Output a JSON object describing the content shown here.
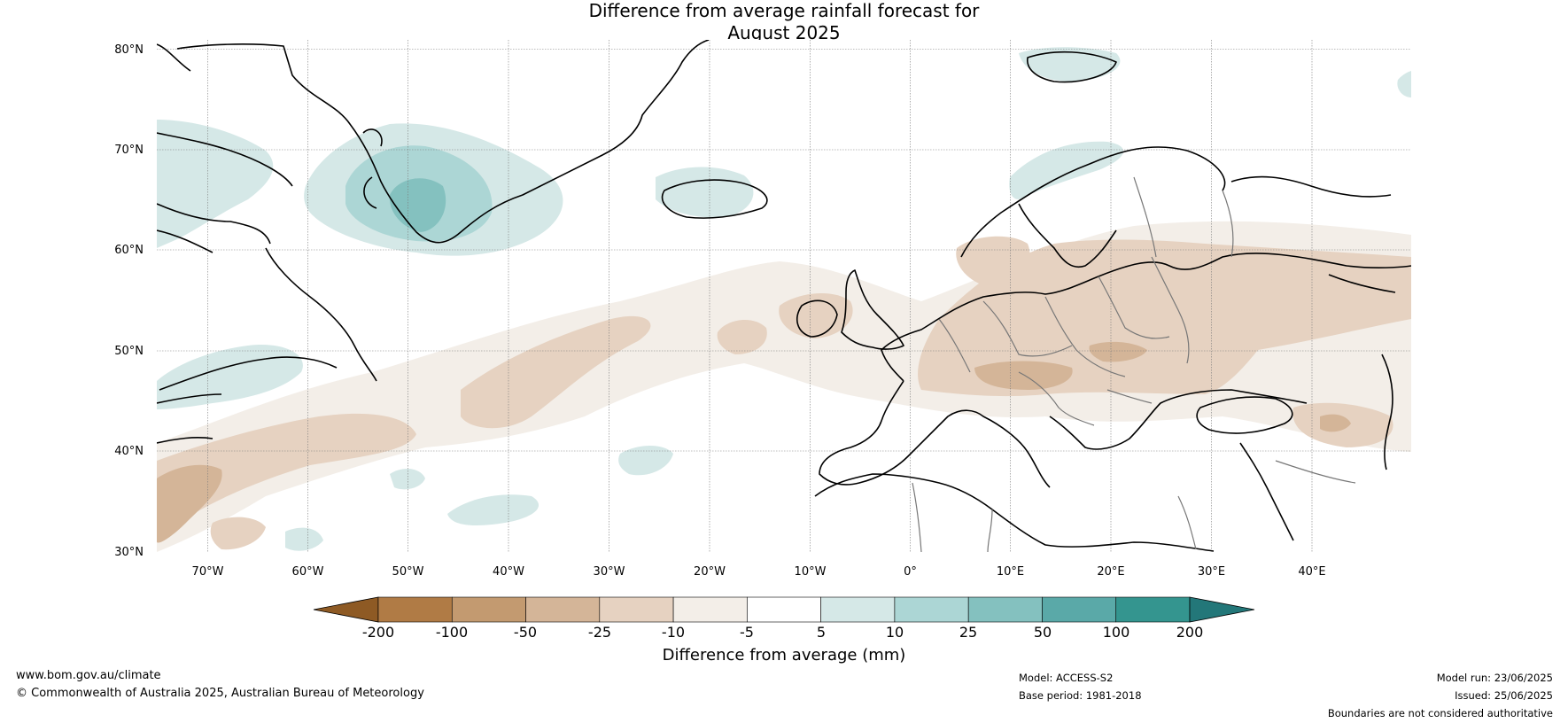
{
  "title_line1": "Difference from average rainfall forecast for",
  "title_line2": "August 2025",
  "map": {
    "lat_labels": [
      "80°N",
      "70°N",
      "60°N",
      "50°N",
      "40°N",
      "30°N"
    ],
    "lon_labels": [
      "70°W",
      "60°W",
      "50°W",
      "40°W",
      "30°W",
      "20°W",
      "10°W",
      "0°",
      "10°E",
      "20°E",
      "30°E",
      "40°E"
    ]
  },
  "colorbar": {
    "ticks": [
      "-200",
      "-100",
      "-50",
      "-25",
      "-10",
      "-5",
      "5",
      "10",
      "25",
      "50",
      "100",
      "200"
    ],
    "colors": [
      "#8e5a24",
      "#b07b45",
      "#c39a70",
      "#d4b598",
      "#e6d2c1",
      "#f3eee8",
      "#ffffff",
      "#d5e8e7",
      "#acd6d5",
      "#84c1bf",
      "#5aa9a8",
      "#34958f",
      "#237779"
    ],
    "label": "Difference from average (mm)"
  },
  "footer": {
    "website": "www.bom.gov.au/climate",
    "copyright": "© Commonwealth of Australia 2025, Australian Bureau of Meteorology",
    "model": "Model: ACCESS-S2",
    "base_period": "Base period: 1981-2018",
    "model_run": "Model run: 23/06/2025",
    "issued": "Issued: 25/06/2025",
    "disclaimer": "Boundaries are not considered authoritative"
  }
}
